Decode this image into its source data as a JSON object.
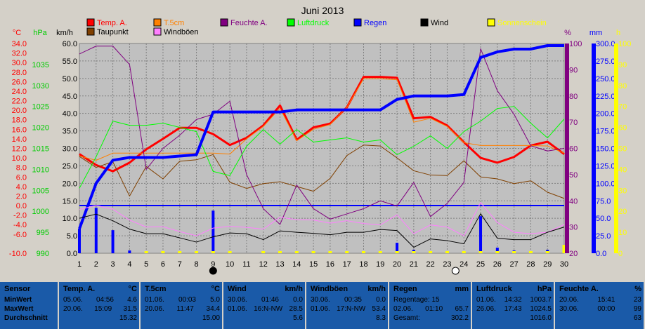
{
  "chart_data": {
    "type": "line",
    "title": "Juni 2013",
    "x": [
      1,
      2,
      3,
      4,
      5,
      6,
      7,
      8,
      9,
      10,
      11,
      12,
      13,
      14,
      15,
      16,
      17,
      18,
      19,
      20,
      21,
      22,
      23,
      24,
      25,
      26,
      27,
      28,
      29,
      30
    ],
    "x_ticks": [
      "1",
      "2",
      "3",
      "4",
      "5",
      "6",
      "7",
      "8",
      "9",
      "10",
      "11",
      "12",
      "13",
      "14",
      "15",
      "16",
      "17",
      "18",
      "19",
      "20",
      "21",
      "22",
      "23",
      "24",
      "25",
      "26",
      "27",
      "28",
      "29",
      "30"
    ],
    "axes": {
      "celsius": {
        "unit": "°C",
        "color": "#ff0000",
        "range": [
          -10,
          34
        ],
        "ticks": [
          "34.0",
          "32.0",
          "30.0",
          "28.0",
          "26.0",
          "24.0",
          "22.0",
          "20.0",
          "18.0",
          "16.0",
          "14.0",
          "12.0",
          "10.0",
          "8.0",
          "6.0",
          "4.0",
          "2.0",
          "0.0",
          "-2.0",
          "-4.0",
          "-6.0",
          "-10.0"
        ]
      },
      "hpa": {
        "unit": "hPa",
        "color": "#00cc00",
        "range": [
          990,
          1040
        ],
        "ticks": [
          "1035",
          "1030",
          "1025",
          "1020",
          "1015",
          "1010",
          "1005",
          "1000",
          "995",
          "990"
        ]
      },
      "kmh": {
        "unit": "km/h",
        "color": "#000000",
        "range": [
          0,
          60
        ],
        "ticks": [
          "60.0",
          "55.0",
          "50.0",
          "45.0",
          "40.0",
          "35.0",
          "30.0",
          "25.0",
          "20.0",
          "15.0",
          "10.0",
          "5.0",
          "0.0"
        ]
      },
      "percent": {
        "unit": "%",
        "color": "#800080",
        "range": [
          20,
          100
        ],
        "ticks": [
          "100",
          "90",
          "80",
          "70",
          "60",
          "50",
          "40",
          "30",
          "20"
        ]
      },
      "mm": {
        "unit": "mm",
        "color": "#0000ff",
        "range": [
          0,
          300
        ],
        "ticks": [
          "300.0",
          "275.0",
          "250.0",
          "225.0",
          "200.0",
          "175.0",
          "150.0",
          "125.0",
          "100.0",
          "75.0",
          "50.0",
          "25.0",
          "0.0"
        ]
      },
      "h": {
        "unit": "h",
        "color": "#ffff00",
        "range": [
          0,
          100
        ],
        "ticks": [
          "100",
          "90",
          "80",
          "70",
          "60",
          "50",
          "40",
          "30",
          "20",
          "10",
          "0"
        ]
      }
    },
    "legend": [
      {
        "name": "Temp. A.",
        "color": "#ff0000"
      },
      {
        "name": "T.5cm",
        "color": "#ff8000"
      },
      {
        "name": "Feuchte A.",
        "color": "#800080"
      },
      {
        "name": "Luftdruck",
        "color": "#00ff00"
      },
      {
        "name": "Regen",
        "color": "#0000ff"
      },
      {
        "name": "Wind",
        "color": "#000000"
      },
      {
        "name": "Sonnenschein",
        "color": "#ffff00"
      },
      {
        "name": "Taupunkt",
        "color": "#804000"
      },
      {
        "name": "Windböen",
        "color": "#ff80ff"
      }
    ],
    "series": [
      {
        "name": "Temp. A.",
        "axis": "celsius",
        "color": "#ff0000",
        "width": 3,
        "values": [
          10.8,
          8.5,
          7.2,
          9.0,
          11.8,
          14.0,
          16.3,
          16.3,
          15.0,
          12.7,
          14.2,
          16.8,
          21.0,
          13.8,
          16.4,
          17.2,
          20.6,
          27.0,
          27.0,
          26.8,
          18.3,
          18.6,
          16.8,
          13.3,
          10.0,
          9.0,
          10.2,
          12.6,
          13.4,
          10.8
        ]
      },
      {
        "name": "T.5cm",
        "axis": "celsius",
        "color": "#ff8000",
        "width": 1,
        "values": [
          10.4,
          9.5,
          11.0,
          11.0,
          11.0,
          11.0,
          11.0,
          11.0,
          11.0,
          10.8,
          14.0,
          16.6,
          20.4,
          13.6,
          16.0,
          17.0,
          20.6,
          26.6,
          26.6,
          26.4,
          17.5,
          18.3,
          16.6,
          13.2,
          12.6,
          12.6,
          12.6,
          12.6,
          12.5,
          11.0
        ]
      },
      {
        "name": "Taupunkt",
        "axis": "celsius",
        "color": "#804000",
        "width": 1,
        "values": [
          10.3,
          8.0,
          9.2,
          2.0,
          8.2,
          5.6,
          9.3,
          9.6,
          10.7,
          4.9,
          3.6,
          4.6,
          5.0,
          4.0,
          3.0,
          5.7,
          10.5,
          12.7,
          12.5,
          10.0,
          7.3,
          6.4,
          6.3,
          9.4,
          6.0,
          5.6,
          4.6,
          5.2,
          2.8,
          1.5
        ]
      },
      {
        "name": "Feuchte A.",
        "axis": "percent",
        "color": "#800080",
        "width": 1,
        "values": [
          96,
          99,
          99,
          92,
          52,
          60,
          65,
          71,
          73,
          78,
          50,
          37,
          31,
          46,
          37,
          33,
          35,
          37,
          40,
          38,
          47,
          34,
          39,
          47,
          98,
          82,
          73,
          61,
          59,
          60
        ]
      },
      {
        "name": "Luftdruck",
        "axis": "hpa",
        "color": "#00ff00",
        "width": 1,
        "values": [
          1005.5,
          1013,
          1021.5,
          1020.5,
          1020.5,
          1021,
          1020,
          1019,
          1009.5,
          1008.5,
          1015.5,
          1019.5,
          1016,
          1019.5,
          1016.5,
          1017,
          1017.5,
          1016.5,
          1017,
          1013.5,
          1015.5,
          1018,
          1015,
          1019,
          1021.5,
          1024.5,
          1025,
          1021,
          1017.5,
          1022
        ]
      },
      {
        "name": "Regen",
        "axis": "mm",
        "color": "#0000ff",
        "width": 4,
        "values": [
          35,
          100,
          133,
          137,
          137,
          137,
          139,
          141,
          202,
          202,
          202,
          202,
          202,
          205,
          205,
          205,
          205,
          205,
          205,
          220,
          225,
          225,
          225,
          227,
          280,
          288,
          292,
          292,
          297,
          297
        ]
      },
      {
        "name": "Windböen",
        "axis": "kmh",
        "color": "#ff80ff",
        "width": 1,
        "values": [
          12.5,
          13.7,
          12.6,
          9.5,
          7.5,
          7.6,
          6.2,
          5.0,
          7.2,
          7.7,
          7.4,
          6.9,
          10.3,
          9.6,
          9.5,
          8.6,
          9.3,
          8.5,
          8.1,
          11.0,
          5.6,
          8.1,
          7.5,
          5.0,
          14.5,
          8.8,
          6.0,
          5.6,
          6.0,
          8.2
        ]
      },
      {
        "name": "Wind",
        "axis": "kmh",
        "color": "#000000",
        "width": 1,
        "values": [
          10.0,
          11.2,
          9.3,
          6.9,
          5.6,
          5.6,
          4.4,
          3.2,
          4.7,
          5.8,
          5.6,
          3.9,
          6.4,
          6.0,
          5.7,
          5.3,
          6.0,
          6.0,
          6.8,
          6.5,
          1.7,
          4.1,
          3.6,
          2.7,
          11.3,
          4.3,
          3.9,
          3.9,
          6.0,
          7.5
        ]
      }
    ],
    "bars": [
      {
        "name": "Regen",
        "axis": "mm",
        "color": "#0000ff",
        "values": [
          35,
          65,
          33,
          4,
          0,
          0,
          2,
          2,
          61,
          0,
          0,
          0,
          0,
          3,
          0,
          0,
          0,
          0,
          0,
          15,
          5,
          0,
          0,
          2,
          53,
          8,
          4,
          0,
          5,
          0
        ]
      },
      {
        "name": "Sonnenschein",
        "axis": "h",
        "color": "#ffff00",
        "values": [
          0,
          0,
          0,
          0,
          1,
          1,
          1,
          1,
          1,
          1,
          0,
          1,
          1,
          1,
          1,
          1,
          1,
          1,
          1,
          1,
          1,
          1,
          1,
          1,
          1,
          1,
          1,
          1,
          1,
          4
        ]
      }
    ],
    "moon_phases": [
      {
        "day": 9,
        "phase": "new"
      },
      {
        "day": 23.5,
        "phase": "full"
      }
    ],
    "grid": true
  },
  "table": {
    "sensor": {
      "header": "Sensor",
      "rows": [
        "MinWert",
        "MaxWert",
        "Durchschnitt"
      ]
    },
    "columns": [
      {
        "title": "Temp. A.",
        "unit": "°C",
        "min": [
          "05.06.",
          "04:56",
          "4.6"
        ],
        "max": [
          "20.06.",
          "15:09",
          "31.5"
        ],
        "avg": "15.32"
      },
      {
        "title": "T.5cm",
        "unit": "°C",
        "min": [
          "01.06.",
          "00:03",
          "5.0"
        ],
        "max": [
          "20.06.",
          "11:47",
          "34.4"
        ],
        "avg": "15.00"
      },
      {
        "title": "Wind",
        "unit": "km/h",
        "min": [
          "30.06.",
          "01:46",
          "0.0"
        ],
        "max": [
          "01.06.",
          "16:N-NW",
          "28.5"
        ],
        "avg": "5.6"
      },
      {
        "title": "Windböen",
        "unit": "km/h",
        "min": [
          "30.06.",
          "00:35",
          "0.0"
        ],
        "max": [
          "01.06.",
          "17:N-NW",
          "53.4"
        ],
        "avg": "8.3"
      },
      {
        "title": "Regen",
        "unit": "mm",
        "min": [
          "Regentage: 15",
          "",
          ""
        ],
        "max": [
          "02.06.",
          "01:10",
          "65.7"
        ],
        "avg_label": "Gesamt:",
        "avg": "302.2"
      },
      {
        "title": "Luftdruck",
        "unit": "hPa",
        "min": [
          "01.06.",
          "14:32",
          "1003.7"
        ],
        "max": [
          "26.06.",
          "17:43",
          "1024.5"
        ],
        "avg": "1016.0"
      },
      {
        "title": "Feuchte A.",
        "unit": "%",
        "min": [
          "20.06.",
          "15:41",
          "23"
        ],
        "max": [
          "30.06.",
          "00:00",
          "99"
        ],
        "avg": "63"
      }
    ]
  }
}
